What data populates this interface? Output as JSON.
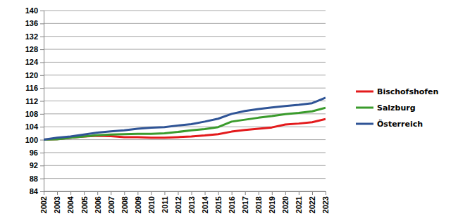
{
  "chart_data": {
    "type": "line",
    "x": [
      2002,
      2003,
      2004,
      2005,
      2006,
      2007,
      2008,
      2009,
      2010,
      2011,
      2012,
      2013,
      2014,
      2015,
      2016,
      2017,
      2018,
      2019,
      2020,
      2021,
      2022,
      2023
    ],
    "xlim": [
      2002,
      2023
    ],
    "xticks": [
      2002,
      2003,
      2004,
      2005,
      2006,
      2007,
      2008,
      2009,
      2010,
      2011,
      2012,
      2013,
      2014,
      2015,
      2016,
      2017,
      2018,
      2019,
      2020,
      2021,
      2022,
      2023
    ],
    "ylim": [
      84,
      140
    ],
    "yticks": [
      84,
      88,
      92,
      96,
      100,
      104,
      108,
      112,
      116,
      120,
      124,
      128,
      132,
      136,
      140
    ],
    "grid": true,
    "legend": "right",
    "series": [
      {
        "name": "Bischofshofen",
        "color": "#e31a1c",
        "values": [
          100,
          100.2,
          100.6,
          101.0,
          101.2,
          101.1,
          100.8,
          100.8,
          100.6,
          100.6,
          100.8,
          101.0,
          101.3,
          101.7,
          102.5,
          103.0,
          103.4,
          103.8,
          104.7,
          105.0,
          105.4,
          106.4
        ]
      },
      {
        "name": "Salzburg",
        "color": "#3a9b2c",
        "values": [
          100,
          100.1,
          100.6,
          101.0,
          101.4,
          101.6,
          101.7,
          101.8,
          101.8,
          102.0,
          102.4,
          102.9,
          103.3,
          103.9,
          105.6,
          106.2,
          106.8,
          107.3,
          107.9,
          108.3,
          108.8,
          109.9
        ]
      },
      {
        "name": "Österreich",
        "color": "#2f5496",
        "values": [
          100,
          100.6,
          101.0,
          101.6,
          102.2,
          102.6,
          102.9,
          103.4,
          103.7,
          103.9,
          104.4,
          104.8,
          105.6,
          106.5,
          108.0,
          108.9,
          109.5,
          110.0,
          110.4,
          110.8,
          111.3,
          113.0
        ]
      }
    ]
  }
}
